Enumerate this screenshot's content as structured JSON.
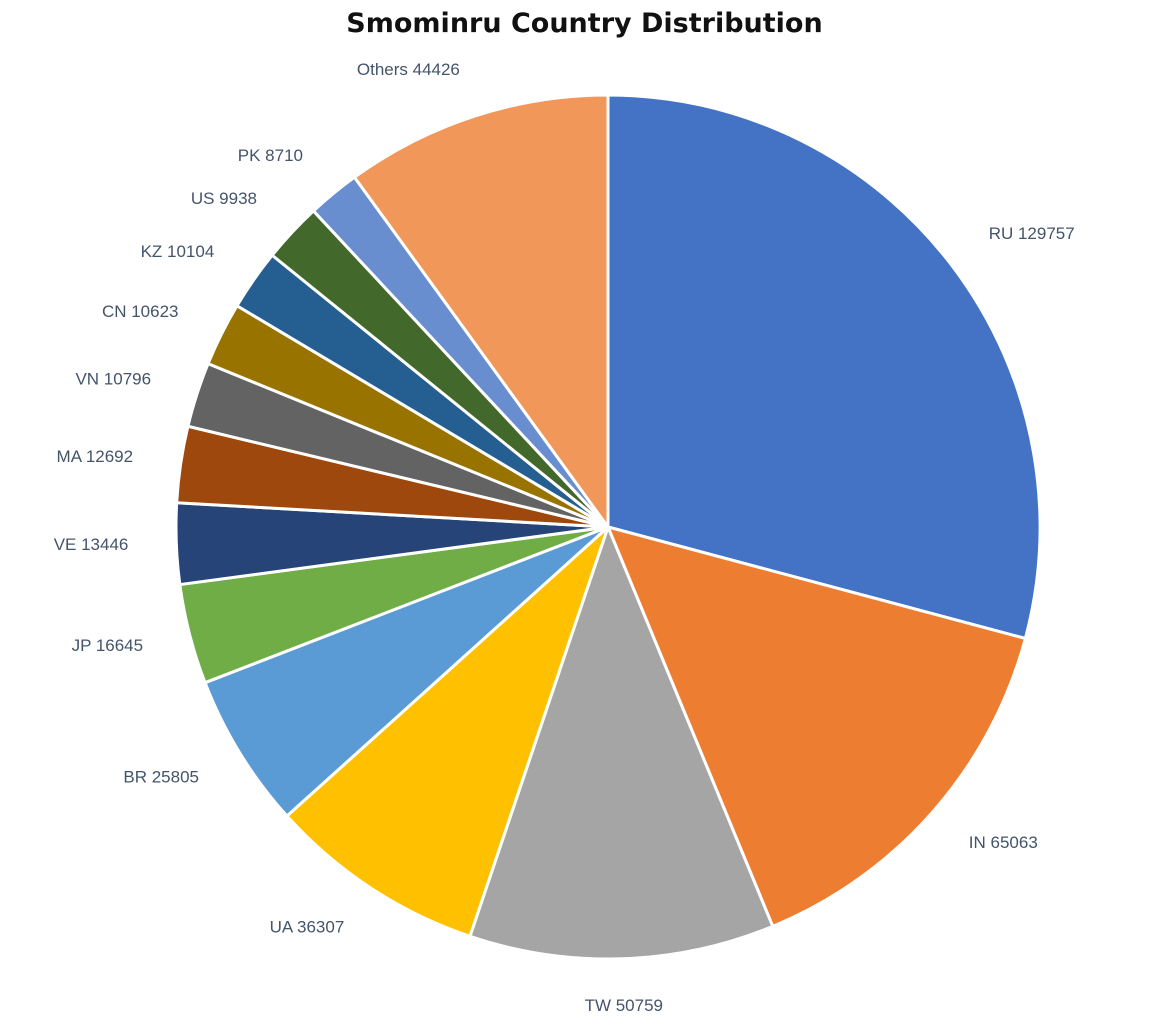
{
  "chart_data": {
    "type": "pie",
    "title": "Smominru Country Distribution",
    "slices": [
      {
        "label": "RU",
        "value": 129757,
        "color": "#4472c4"
      },
      {
        "label": "IN",
        "value": 65063,
        "color": "#ed7d31"
      },
      {
        "label": "TW",
        "value": 50759,
        "color": "#a5a5a5"
      },
      {
        "label": "UA",
        "value": 36307,
        "color": "#ffc000"
      },
      {
        "label": "BR",
        "value": 25805,
        "color": "#5b9bd5"
      },
      {
        "label": "JP",
        "value": 16645,
        "color": "#70ad47"
      },
      {
        "label": "VE",
        "value": 13446,
        "color": "#264478"
      },
      {
        "label": "MA",
        "value": 12692,
        "color": "#9e480e"
      },
      {
        "label": "VN",
        "value": 10796,
        "color": "#636363"
      },
      {
        "label": "CN",
        "value": 10623,
        "color": "#997300"
      },
      {
        "label": "KZ",
        "value": 10104,
        "color": "#255e91"
      },
      {
        "label": "US",
        "value": 9938,
        "color": "#43682b"
      },
      {
        "label": "PK",
        "value": 8710,
        "color": "#698ed0"
      },
      {
        "label": "Others",
        "value": 44426,
        "color": "#f1975a"
      }
    ],
    "data_labels": [
      "RU 129757",
      "IN 65063",
      "TW 50759",
      "UA 36307",
      "BR 25805",
      "JP 16645",
      "VE 13446",
      "MA 12692",
      "VN 10796",
      "CN 10623",
      "KZ 10104",
      "US 9938",
      "PK 8710",
      "Others 44426"
    ],
    "legend": "none",
    "start_angle": "12 o'clock",
    "direction": "clockwise"
  }
}
